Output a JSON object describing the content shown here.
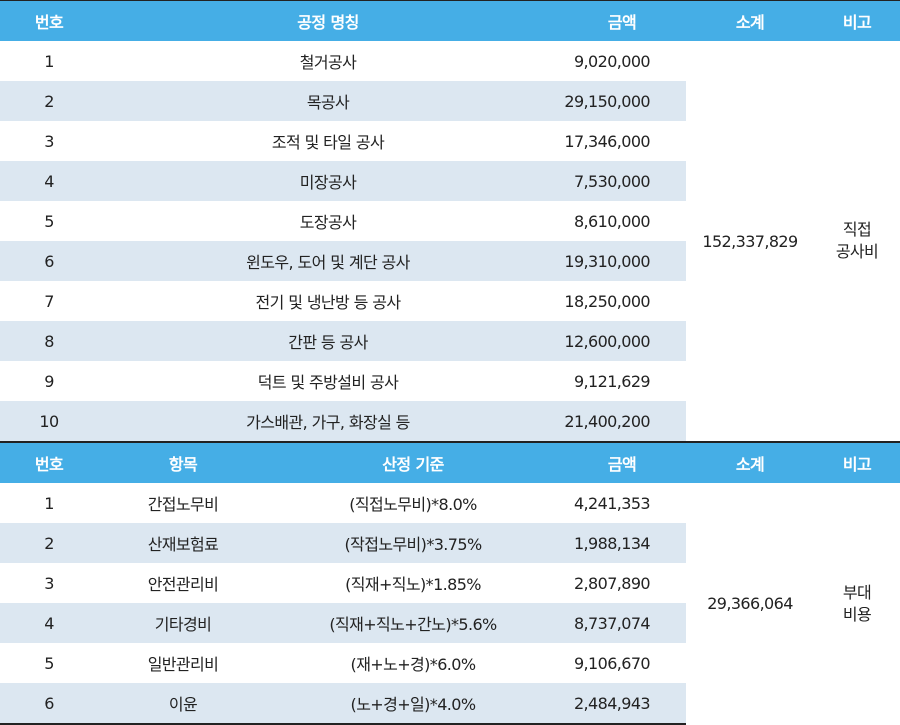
{
  "table1": {
    "headers": [
      "번호",
      "공정 명칭",
      "금액",
      "소계",
      "비고"
    ],
    "rows": [
      {
        "no": "1",
        "name": "철거공사",
        "amount": "9,020,000"
      },
      {
        "no": "2",
        "name": "목공사",
        "amount": "29,150,000"
      },
      {
        "no": "3",
        "name": "조적 및 타일 공사",
        "amount": "17,346,000"
      },
      {
        "no": "4",
        "name": "미장공사",
        "amount": "7,530,000"
      },
      {
        "no": "5",
        "name": "도장공사",
        "amount": "8,610,000"
      },
      {
        "no": "6",
        "name": "윈도우, 도어 및 계단 공사",
        "amount": "19,310,000"
      },
      {
        "no": "7",
        "name": "전기 및 냉난방 등 공사",
        "amount": "18,250,000"
      },
      {
        "no": "8",
        "name": "간판 등 공사",
        "amount": "12,600,000"
      },
      {
        "no": "9",
        "name": "덕트 및 주방설비 공사",
        "amount": "9,121,629"
      },
      {
        "no": "10",
        "name": "가스배관, 가구, 화장실 등",
        "amount": "21,400,200"
      }
    ],
    "subtotal": "152,337,829",
    "note_line1": "직접",
    "note_line2": "공사비"
  },
  "table2": {
    "headers": [
      "번호",
      "항목",
      "산정 기준",
      "금액",
      "소계",
      "비고"
    ],
    "rows": [
      {
        "no": "1",
        "item": "간접노무비",
        "basis": "(직접노무비)*8.0%",
        "amount": "4,241,353"
      },
      {
        "no": "2",
        "item": "산재보험료",
        "basis": "(작접노무비)*3.75%",
        "amount": "1,988,134"
      },
      {
        "no": "3",
        "item": "안전관리비",
        "basis": "(직재+직노)*1.85%",
        "amount": "2,807,890"
      },
      {
        "no": "4",
        "item": "기타경비",
        "basis": "(직재+직노+간노)*5.6%",
        "amount": "8,737,074"
      },
      {
        "no": "5",
        "item": "일반관리비",
        "basis": "(재+노+경)*6.0%",
        "amount": "9,106,670"
      },
      {
        "no": "6",
        "item": "이윤",
        "basis": "(노+경+일)*4.0%",
        "amount": "2,484,943"
      }
    ],
    "subtotal": "29,366,064",
    "note_line1": "부대",
    "note_line2": "비용"
  }
}
